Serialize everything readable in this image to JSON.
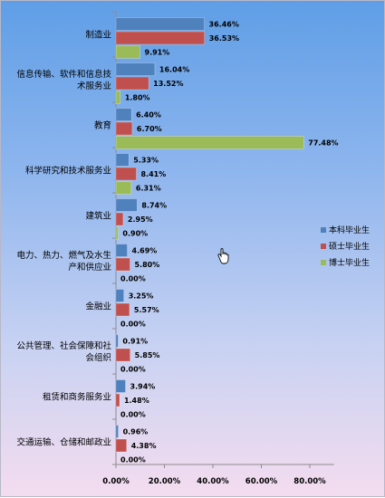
{
  "chart_data": {
    "type": "bar",
    "orientation": "horizontal",
    "categories": [
      [
        "制造业"
      ],
      [
        "信息传输、软件和信息技",
        "术服务业"
      ],
      [
        "教育"
      ],
      [
        "科学研究和技术服务业"
      ],
      [
        "建筑业"
      ],
      [
        "电力、热力、燃气及水生",
        "产和供应业"
      ],
      [
        "金融业"
      ],
      [
        "公共管理、社会保障和社",
        "会组织"
      ],
      [
        "租赁和商务服务业"
      ],
      [
        "交通运输、仓储和邮政业"
      ]
    ],
    "series": [
      {
        "name": "本科毕业生",
        "color": "#4f81bd",
        "values": [
          36.46,
          16.04,
          6.4,
          5.33,
          8.74,
          4.69,
          3.25,
          0.91,
          3.94,
          0.96
        ],
        "labels": [
          "36.46%",
          "16.04%",
          "6.40%",
          "5.33%",
          "8.74%",
          "4.69%",
          "3.25%",
          "0.91%",
          "3.94%",
          "0.96%"
        ]
      },
      {
        "name": "硕士毕业生",
        "color": "#c0504d",
        "values": [
          36.53,
          13.52,
          6.7,
          8.41,
          2.95,
          5.8,
          5.57,
          5.85,
          1.48,
          4.38
        ],
        "labels": [
          "36.53%",
          "13.52%",
          "6.70%",
          "8.41%",
          "2.95%",
          "5.80%",
          "5.57%",
          "5.85%",
          "1.48%",
          "4.38%"
        ]
      },
      {
        "name": "博士毕业生",
        "color": "#9bbb59",
        "values": [
          9.91,
          1.8,
          77.48,
          6.31,
          0.9,
          0.0,
          0.0,
          0.0,
          0.0,
          0.0
        ],
        "labels": [
          "9.91%",
          "1.80%",
          "77.48%",
          "6.31%",
          "0.90%",
          "0.00%",
          "0.00%",
          "0.00%",
          "0.00%",
          "0.00%"
        ]
      }
    ],
    "xlim": [
      0,
      90
    ],
    "x_ticks": [
      0,
      20,
      40,
      60,
      80
    ],
    "x_tick_labels": [
      "0.00%",
      "20.00%",
      "40.00%",
      "60.00%",
      "80.00%"
    ],
    "legend_position": "right",
    "grid": false
  },
  "cursor_icon": "hand-pointer-icon"
}
